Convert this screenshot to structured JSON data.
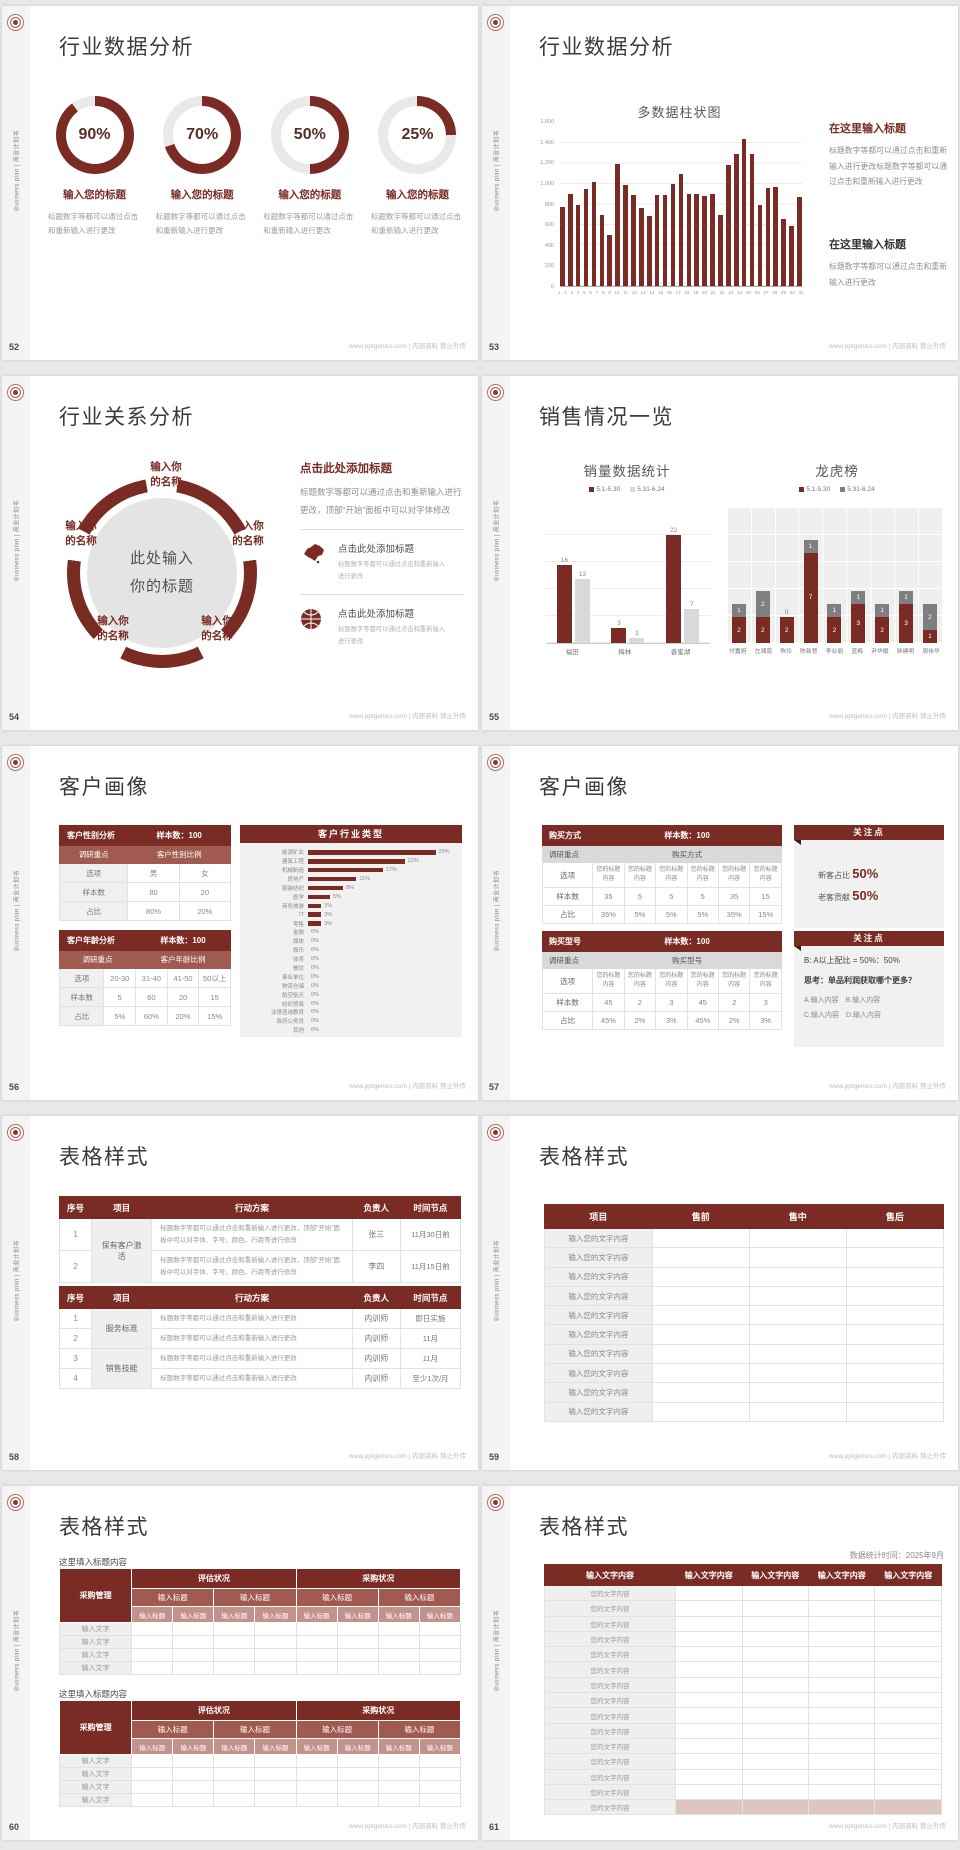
{
  "common": {
    "vertical_label": "Business plan | 商业计划书",
    "footer": "www.pptgenius.com | 内部资料 禁止外传"
  },
  "colors": {
    "accent": "#7a2b24",
    "accent_mid": "#a05a50",
    "accent_soft": "#c3928a",
    "gray_series": "#7f7f7f",
    "light_series": "#d9d9d9",
    "panel": "#f1f1f1",
    "cell_alt": "#efefef",
    "pink": "#ddc5c1"
  },
  "slides": [
    {
      "page": "52",
      "title": "行业数据分析",
      "type": "donuts",
      "donuts": [
        {
          "pct": 90,
          "pct_label": "90%",
          "heading": "输入您的标题",
          "body": "标题数字等都可以通过点击和重新输入进行更改"
        },
        {
          "pct": 70,
          "pct_label": "70%",
          "heading": "输入您的标题",
          "body": "标题数字等都可以通过点击和重新输入进行更改"
        },
        {
          "pct": 50,
          "pct_label": "50%",
          "heading": "输入您的标题",
          "body": "标题数字等都可以通过点击和重新输入进行更改"
        },
        {
          "pct": 25,
          "pct_label": "25%",
          "heading": "输入您的标题",
          "body": "标题数字等都可以通过点击和重新输入进行更改"
        }
      ]
    },
    {
      "page": "53",
      "title": "行业数据分析",
      "type": "bars",
      "chart": {
        "type": "bar",
        "title": "多数据柱状图",
        "ymax": 1600,
        "yticks": [
          "1,600",
          "1,400",
          "1,200",
          "1,000",
          "800",
          "600",
          "400",
          "200",
          "0"
        ],
        "x_labels": [
          "1",
          "2",
          "3",
          "4",
          "5",
          "6",
          "7",
          "8",
          "9",
          "10",
          "11",
          "12",
          "13",
          "14",
          "15",
          "16",
          "17",
          "18",
          "19",
          "20",
          "21",
          "22",
          "23",
          "24",
          "25",
          "26",
          "27",
          "28",
          "29",
          "30",
          "31"
        ],
        "values": [
          780,
          900,
          800,
          950,
          1020,
          700,
          500,
          1200,
          990,
          890,
          770,
          690,
          890,
          890,
          1000,
          1100,
          900,
          900,
          880,
          900,
          700,
          1190,
          1300,
          1440,
          1300,
          800,
          960,
          970,
          660,
          590,
          870
        ]
      },
      "blocks": [
        {
          "heading": "在这里输入标题",
          "accent": true,
          "body": "标题数字等都可以通过点击和重新输入进行更改标题数字等都可以通过点击和重新输入进行更改"
        },
        {
          "heading": "在这里输入标题",
          "accent": false,
          "body": "标题数字等都可以通过点击和重新输入进行更改"
        }
      ]
    },
    {
      "page": "54",
      "title": "行业关系分析",
      "type": "relation",
      "center_lines": [
        "此处输入",
        "你的标题"
      ],
      "nodes": [
        {
          "lines": [
            "输入你",
            "的名称"
          ]
        },
        {
          "lines": [
            "输入你",
            "的名称"
          ]
        },
        {
          "lines": [
            "输入你",
            "的名称"
          ]
        },
        {
          "lines": [
            "输入你",
            "的名称"
          ]
        },
        {
          "lines": [
            "输入你",
            "的名称"
          ]
        }
      ],
      "right": {
        "heading": "点击此处添加标题",
        "body": "标题数字等都可以通过点击和重新输入进行更改，顶部“开始”面板中可以对字体修改",
        "items": [
          {
            "icon": "china-map-icon",
            "heading": "点击此处添加标题",
            "body": "标题数字等都可以通过点击和重新输入进行更改"
          },
          {
            "icon": "globe-icon",
            "heading": "点击此处添加标题",
            "body": "标题数字等都可以通过点击和重新输入进行更改"
          }
        ]
      }
    },
    {
      "page": "55",
      "title": "销售情况一览",
      "type": "sales",
      "left": {
        "type": "bar",
        "title": "销量数据统计",
        "legend": [
          "5.1-5.30",
          "5.31-6.24"
        ],
        "categories": [
          "福田",
          "梅林",
          "香蜜湖"
        ],
        "series": [
          {
            "name": "5.1-5.30",
            "values": [
              16,
              3,
              22
            ]
          },
          {
            "name": "5.31-6.24",
            "values": [
              13,
              1,
              7
            ]
          }
        ]
      },
      "right": {
        "type": "stacked-bar",
        "title": "龙虎榜",
        "legend": [
          "5.1-5.30",
          "5.31-6.24"
        ],
        "categories": [
          "付嘉妲",
          "左湘南",
          "陈玲",
          "陈新慧",
          "李业丽",
          "蓝梅",
          "尹华娥",
          "钟建明",
          "周伟华"
        ],
        "series": [
          {
            "name": "5.1-5.30",
            "values": [
              2,
              2,
              2,
              7,
              2,
              3,
              2,
              3,
              1
            ]
          },
          {
            "name": "5.31-6.24",
            "values": [
              1,
              2,
              0,
              1,
              1,
              1,
              1,
              1,
              2
            ]
          }
        ]
      }
    },
    {
      "page": "56",
      "title": "客户画像",
      "type": "profile1",
      "tables": [
        {
          "h1": "客户性别分析",
          "h2": "样本数：100",
          "sub1": "调研重点",
          "sub2": "客户性别比例",
          "rows": [
            [
              "选项",
              "男",
              "女"
            ],
            [
              "样本数",
              "80",
              "20"
            ],
            [
              "占比",
              "80%",
              "20%"
            ]
          ]
        },
        {
          "h1": "客户年龄分析",
          "h2": "样本数：100",
          "sub1": "调研重点",
          "sub2": "客户年龄比例",
          "rows": [
            [
              "选项",
              "20-30",
              "31-40",
              "41-50",
              "50以上"
            ],
            [
              "样本数",
              "5",
              "60",
              "20",
              "15"
            ],
            [
              "占比",
              "5%",
              "60%",
              "20%",
              "15%"
            ]
          ]
        }
      ],
      "industry": {
        "title": "客户行业类型",
        "items": [
          {
            "label": "能源矿业",
            "pct": 29,
            "pct_label": "29%"
          },
          {
            "label": "建筑工程",
            "pct": 22,
            "pct_label": "22%"
          },
          {
            "label": "机械制造",
            "pct": 17,
            "pct_label": "17%"
          },
          {
            "label": "房地产",
            "pct": 11,
            "pct_label": "11%"
          },
          {
            "label": "服装纺织",
            "pct": 8,
            "pct_label": "8%"
          },
          {
            "label": "医学",
            "pct": 5,
            "pct_label": "5%"
          },
          {
            "label": "商务旅游",
            "pct": 3,
            "pct_label": "3%"
          },
          {
            "label": "IT",
            "pct": 3,
            "pct_label": "3%"
          },
          {
            "label": "零售",
            "pct": 3,
            "pct_label": "3%"
          },
          {
            "label": "金融",
            "pct": 0,
            "pct_label": "0%"
          },
          {
            "label": "媒体",
            "pct": 0,
            "pct_label": "0%"
          },
          {
            "label": "娱乐",
            "pct": 0,
            "pct_label": "0%"
          },
          {
            "label": "体育",
            "pct": 0,
            "pct_label": "0%"
          },
          {
            "label": "餐饮",
            "pct": 0,
            "pct_label": "0%"
          },
          {
            "label": "事业单位",
            "pct": 0,
            "pct_label": "0%"
          },
          {
            "label": "物流仓储",
            "pct": 0,
            "pct_label": "0%"
          },
          {
            "label": "航空航天",
            "pct": 0,
            "pct_label": "0%"
          },
          {
            "label": "纺织贸易",
            "pct": 0,
            "pct_label": "0%"
          },
          {
            "label": "法律咨询教育",
            "pct": 0,
            "pct_label": "0%"
          },
          {
            "label": "政府公务员",
            "pct": 0,
            "pct_label": "0%"
          },
          {
            "label": "其他",
            "pct": 0,
            "pct_label": "0%"
          }
        ]
      }
    },
    {
      "page": "57",
      "title": "客户画像",
      "type": "profile2",
      "groups": [
        {
          "h1": "购买方式",
          "h2": "样本数：100",
          "sub1": "调研重点",
          "sub2": "购买方式",
          "opt_label": "选项",
          "opts": [
            "您的标题内容",
            "您的标题内容",
            "您的标题内容",
            "您的标题内容",
            "您的标题内容",
            "您的标题内容"
          ],
          "rows": [
            [
              "样本数",
              "35",
              "5",
              "5",
              "5",
              "35",
              "15"
            ],
            [
              "占比",
              "35%",
              "5%",
              "5%",
              "5%",
              "35%",
              "15%"
            ]
          ],
          "focus": {
            "title": "关注点",
            "big_lines": [
              {
                "pre": "新客占比 ",
                "big": "50%"
              },
              {
                "pre": "老客贡献 ",
                "big": "50%"
              }
            ]
          }
        },
        {
          "h1": "购买型号",
          "h2": "样本数：100",
          "sub1": "调研重点",
          "sub2": "购买型号",
          "opt_label": "选项",
          "opts": [
            "您的标题内容",
            "您的标题内容",
            "您的标题内容",
            "您的标题内容",
            "您的标题内容",
            "您的标题内容"
          ],
          "rows": [
            [
              "样本数",
              "45",
              "2",
              "3",
              "45",
              "2",
              "3"
            ],
            [
              "占比",
              "45%",
              "2%",
              "3%",
              "45%",
              "2%",
              "3%"
            ]
          ],
          "focus": {
            "title": "关注点",
            "text_lines": [
              {
                "text": "B: A以上配比 = 50%：50%",
                "strong": false
              },
              {
                "text": "思考：单品利润获取哪个更多？",
                "strong": true
              },
              {
                "text": "A.输入内容　B.输入内容",
                "muted": true
              },
              {
                "text": "C.输入内容　D.输入内容",
                "muted": true
              }
            ]
          }
        }
      ]
    },
    {
      "page": "58",
      "title": "表格样式",
      "type": "actiontable",
      "tables": [
        {
          "headers": [
            "序号",
            "项目",
            "行动方案",
            "负责人",
            "时间节点"
          ],
          "rows": [
            {
              "no": "1",
              "item": "保有客户激活",
              "span": 2,
              "plan": "标题数字等都可以通过点击和重新输入进行更改，顶部“开始”面板中可以对字体、字号、颜色、行距等进行修改",
              "owner": "张三",
              "time": "11月30日前"
            },
            {
              "no": "2",
              "plan": "标题数字等都可以通过点击和重新输入进行更改，顶部“开始”面板中可以对字体、字号、颜色、行距等进行修改",
              "owner": "李四",
              "time": "11月15日前"
            }
          ]
        },
        {
          "headers": [
            "序号",
            "项目",
            "行动方案",
            "负责人",
            "时间节点"
          ],
          "rows": [
            {
              "no": "1",
              "item": "服务标准",
              "span": 2,
              "plan": "标题数字等都可以通过点击和重新输入进行更改",
              "owner": "内训师",
              "time": "即日实施"
            },
            {
              "no": "2",
              "plan": "标题数字等都可以通过点击和重新输入进行更改",
              "owner": "内训师",
              "time": "11月"
            },
            {
              "no": "3",
              "item": "销售技能",
              "span": 2,
              "plan": "标题数字等都可以通过点击和重新输入进行更改",
              "owner": "内训师",
              "time": "11月"
            },
            {
              "no": "4",
              "plan": "标题数字等都可以通过点击和重新输入进行更改",
              "owner": "内训师",
              "time": "至少1次/月"
            }
          ]
        }
      ]
    },
    {
      "page": "59",
      "title": "表格样式",
      "type": "simpletable",
      "headers": [
        "项目",
        "售前",
        "售中",
        "售后"
      ],
      "row_label": "输入您的文字内容",
      "row_count": 10
    },
    {
      "page": "60",
      "title": "表格样式",
      "type": "nested",
      "blocks": [
        {
          "label": "这里填入标题内容",
          "corner": "采购管理",
          "top_headers": [
            "评估状况",
            "采购状况"
          ],
          "mid_header": "输入标题",
          "sub_header": "输入标题",
          "row_label": "输入文字",
          "row_count": 4
        },
        {
          "label": "这里填入标题内容",
          "corner": "采购管理",
          "top_headers": [
            "评估状况",
            "采购状况"
          ],
          "mid_header": "输入标题",
          "sub_header": "输入标题",
          "row_label": "输入文字",
          "row_count": 4
        }
      ]
    },
    {
      "page": "61",
      "title": "表格样式",
      "type": "bigtable",
      "note": "数据统计时间：2025年9月",
      "headers": [
        "输入文字内容",
        "输入文字内容",
        "输入文字内容",
        "输入文字内容",
        "输入文字内容"
      ],
      "row_label": "您的文字内容",
      "row_count": 15,
      "highlight_last": true
    }
  ]
}
